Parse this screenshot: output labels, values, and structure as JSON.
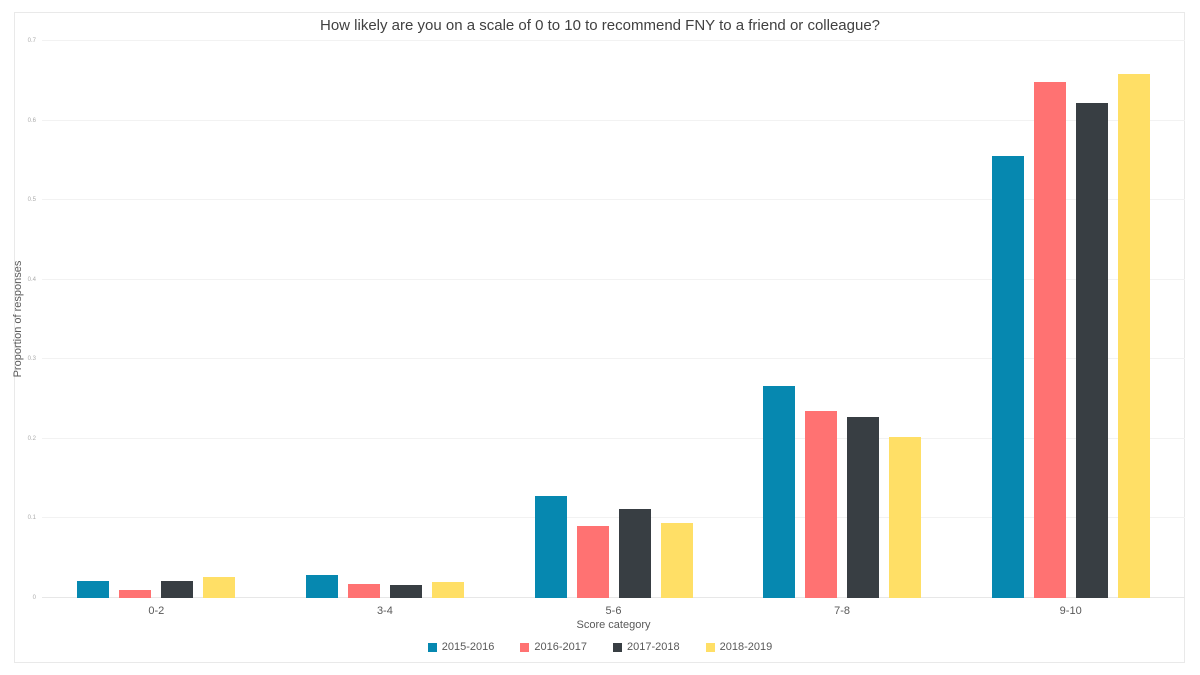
{
  "page": {
    "background": "#ffffff",
    "frame_border_color": "#e9e9e9"
  },
  "chart_data": {
    "type": "bar",
    "title": "How likely are you on a scale of 0 to 10 to recommend FNY to a friend or colleague?",
    "xlabel": "Score category",
    "ylabel": "Proportion of responses",
    "categories": [
      "0-2",
      "3-4",
      "5-6",
      "7-8",
      "9-10"
    ],
    "series": [
      {
        "name": "2015-2016",
        "color": "#0688b0",
        "values": [
          0.022,
          0.029,
          0.128,
          0.267,
          0.555
        ]
      },
      {
        "name": "2016-2017",
        "color": "#ff7272",
        "values": [
          0.01,
          0.018,
          0.091,
          0.235,
          0.648
        ]
      },
      {
        "name": "2017-2018",
        "color": "#383e43",
        "values": [
          0.021,
          0.016,
          0.112,
          0.228,
          0.622
        ]
      },
      {
        "name": "2018-2019",
        "color": "#ffdf66",
        "values": [
          0.026,
          0.02,
          0.094,
          0.202,
          0.659
        ]
      }
    ],
    "ylim": [
      0,
      0.7
    ],
    "ytick_labels": [
      "0",
      "0.1",
      "0.2",
      "0.3",
      "0.4",
      "0.5",
      "0.6",
      "0.7"
    ],
    "grid": true,
    "gridline_color": "#f2f2f2",
    "axis_line_color": "#e7e7e7",
    "legend_position": "bottom"
  }
}
